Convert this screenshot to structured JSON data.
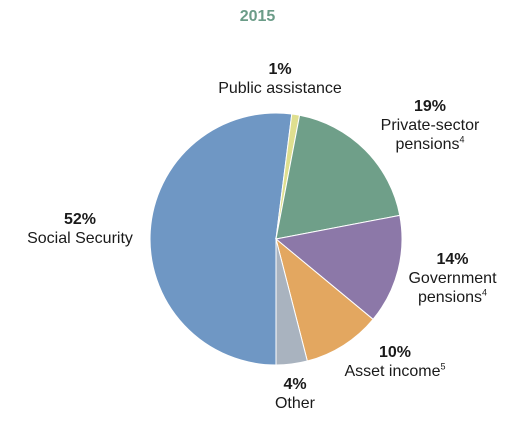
{
  "chart_data": {
    "type": "pie",
    "title": "2015",
    "colors": [
      "#6f97c4",
      "#dfdf8f",
      "#6f9f89",
      "#8c78a8",
      "#e3a760",
      "#a9b3bf"
    ],
    "slices": [
      {
        "label": "Social Security",
        "value": 52,
        "value_label": "52%",
        "note": ""
      },
      {
        "label": "Public assistance",
        "value": 1,
        "value_label": "1%",
        "note": ""
      },
      {
        "label": "Private-sector pensions",
        "value": 19,
        "value_label": "19%",
        "note": "4"
      },
      {
        "label": "Government pensions",
        "value": 14,
        "value_label": "14%",
        "note": "4"
      },
      {
        "label": "Asset income",
        "value": 10,
        "value_label": "10%",
        "note": "5"
      },
      {
        "label": "Other",
        "value": 4,
        "value_label": "4%",
        "note": ""
      }
    ]
  },
  "labels": {
    "social_security": {
      "pct": "52%",
      "name": "Social Security"
    },
    "public_assistance": {
      "pct": "1%",
      "name": "Public assistance"
    },
    "private_pensions": {
      "pct": "19%",
      "line1": "Private-sector",
      "line2": "pensions",
      "note": "4"
    },
    "government_pensions": {
      "pct": "14%",
      "line1": "Government",
      "line2": "pensions",
      "note": "4"
    },
    "asset_income": {
      "pct": "10%",
      "name": "Asset income",
      "note": "5"
    },
    "other": {
      "pct": "4%",
      "name": "Other"
    }
  }
}
